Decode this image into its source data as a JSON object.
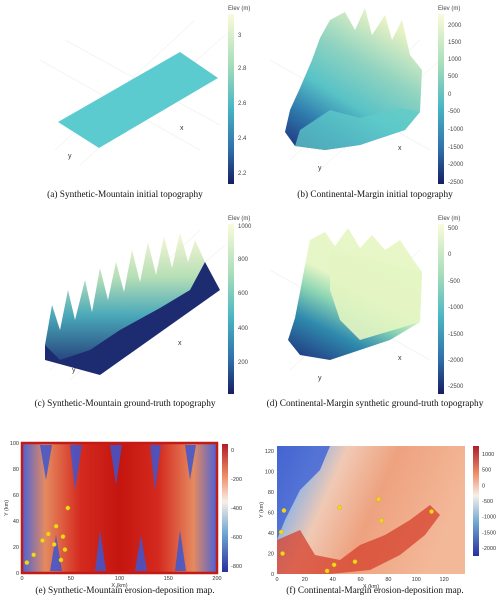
{
  "captions": {
    "a": "(a)  Synthetic-Mountain initial topography",
    "b": "(b)  Continental-Margin initial topography",
    "c": "(c)  Synthetic-Mountain ground-truth topography",
    "d": "(d)  Continental-Margin  synthetic  ground-truth  topography",
    "e": "(e)  Synthetic-Mountain erosion-deposition map.",
    "f": "(f)  Continental-Margin erosion-deposition map."
  },
  "panel_a": {
    "colorbar_title": "Elev (m)",
    "ticks": [
      "3",
      "2.8",
      "2.6",
      "2.4",
      "2.2"
    ],
    "axis_x": "x",
    "axis_y": "y"
  },
  "panel_b": {
    "colorbar_title": "Elev (m)",
    "ticks": [
      "2000",
      "1500",
      "1000",
      "500",
      "0",
      "-500",
      "-1000",
      "-1500",
      "-2000",
      "-2500"
    ],
    "axis_x": "x",
    "axis_y": "y"
  },
  "panel_c": {
    "colorbar_title": "Elev (m)",
    "ticks": [
      "1000",
      "800",
      "600",
      "400",
      "200"
    ],
    "axis_x": "x",
    "axis_y": "y"
  },
  "panel_d": {
    "colorbar_title": "Elev (m)",
    "ticks": [
      "500",
      "0",
      "-500",
      "-1000",
      "-1500",
      "-2000",
      "-2500"
    ],
    "axis_x": "x",
    "axis_y": "y"
  },
  "chart_data": [
    {
      "type": "heatmap",
      "panel": "e",
      "xlabel": "X (km)",
      "ylabel": "Y (km)",
      "x_ticks": [
        "0",
        "50",
        "100",
        "150",
        "200"
      ],
      "y_ticks": [
        "100",
        "80",
        "60",
        "40",
        "20",
        "0"
      ],
      "colorbar_ticks": [
        "0",
        "-200",
        "-400",
        "-600",
        "-800"
      ],
      "xlim": [
        0,
        200
      ],
      "ylim": [
        0,
        100
      ],
      "points": [
        {
          "x": 5,
          "y": 8
        },
        {
          "x": 12,
          "y": 14
        },
        {
          "x": 21,
          "y": 25
        },
        {
          "x": 27,
          "y": 30
        },
        {
          "x": 35,
          "y": 36
        },
        {
          "x": 42,
          "y": 28
        },
        {
          "x": 47,
          "y": 50
        },
        {
          "x": 33,
          "y": 22
        },
        {
          "x": 44,
          "y": 18
        },
        {
          "x": 40,
          "y": 10
        }
      ]
    },
    {
      "type": "heatmap",
      "panel": "f",
      "xlabel": "X (km)",
      "ylabel": "Y (km)",
      "x_ticks": [
        "0",
        "20",
        "40",
        "60",
        "80",
        "100",
        "120"
      ],
      "y_ticks": [
        "120",
        "100",
        "80",
        "60",
        "40",
        "20",
        "0"
      ],
      "colorbar_ticks": [
        "1000",
        "500",
        "0",
        "-500",
        "-1000",
        "-1500",
        "-2000"
      ],
      "xlim": [
        0,
        135
      ],
      "ylim": [
        0,
        125
      ],
      "points": [
        {
          "x": 5,
          "y": 62
        },
        {
          "x": 3,
          "y": 41
        },
        {
          "x": 4,
          "y": 20
        },
        {
          "x": 45,
          "y": 65
        },
        {
          "x": 73,
          "y": 73
        },
        {
          "x": 75,
          "y": 52
        },
        {
          "x": 111,
          "y": 61
        },
        {
          "x": 56,
          "y": 12
        },
        {
          "x": 41,
          "y": 9
        },
        {
          "x": 36,
          "y": 3
        }
      ]
    }
  ]
}
